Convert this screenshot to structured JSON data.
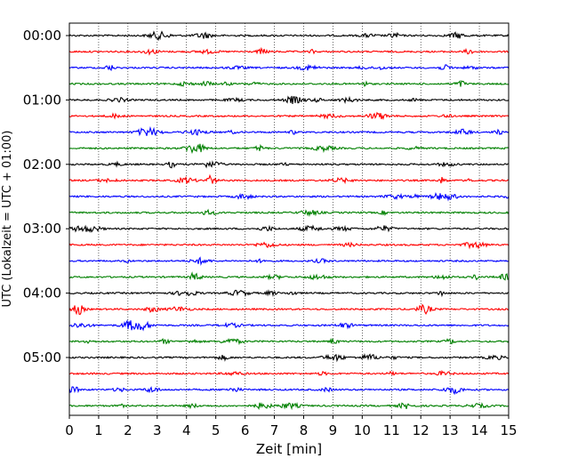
{
  "chart_data": {
    "type": "line",
    "title": "",
    "xlabel": "Zeit  [min]",
    "ylabel": "UTC (Lokalzeit = UTC + 01:00)",
    "xlim": [
      0,
      15
    ],
    "x_ticks": [
      0,
      1,
      2,
      3,
      4,
      5,
      6,
      7,
      8,
      9,
      10,
      11,
      12,
      13,
      14,
      15
    ],
    "y_tick_labels": [
      "00:00",
      "01:00",
      "02:00",
      "03:00",
      "04:00",
      "05:00"
    ],
    "y_tick_trace_index": [
      0,
      4,
      8,
      12,
      16,
      20
    ],
    "vertical_grid": true,
    "grid_style": "dotted",
    "trace_count": 24,
    "trace_interval_minutes": 15,
    "trace_colors": [
      "#000000",
      "#ff0000",
      "#0000ff",
      "#008000"
    ],
    "legend": "none"
  }
}
